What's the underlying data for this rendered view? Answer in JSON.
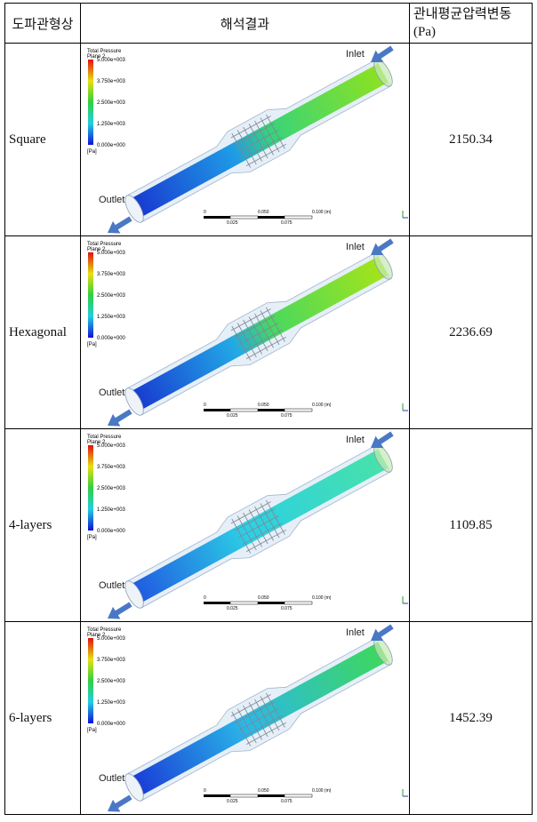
{
  "header": [
    "도파관형상",
    "해석결과",
    "관내평균압력변동 (Pa)"
  ],
  "figure": {
    "legend_title": "Total Pressure",
    "legend_subtitle": "Plane 2",
    "legend_ticks": [
      "5.000e+003",
      "3.750e+003",
      "2.500e+003",
      "1.250e+003",
      "0.000e+000"
    ],
    "legend_unit": "[Pa]",
    "inlet": "Inlet",
    "outlet": "Outlet",
    "scale_top": [
      "0",
      "0.050",
      "0.100 (m)"
    ],
    "scale_bottom": [
      "0.025",
      "0.075"
    ]
  },
  "rows": [
    {
      "shape": "Square",
      "pressure": 2150.34
    },
    {
      "shape": "Hexagonal",
      "pressure": 2236.69
    },
    {
      "shape": "4-layers",
      "pressure": 1109.85
    },
    {
      "shape": "6-layers",
      "pressure": 1452.39
    }
  ]
}
